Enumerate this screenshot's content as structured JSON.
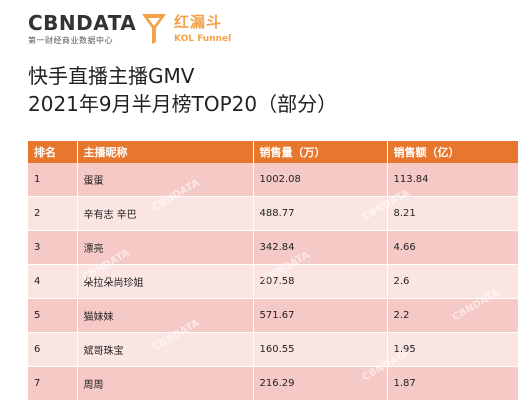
{
  "logo": {
    "cbn_brand": "CBNDATA",
    "cbn_sub": "第一财经商业数据中心",
    "kol_cn": "红漏斗",
    "kol_en": "KOL Funnel"
  },
  "title": {
    "line1": "快手直播主播GMV",
    "line2": "2021年9月半月榜TOP20（部分）"
  },
  "table": {
    "headers": [
      "排名",
      "主播昵称",
      "销售量（万）",
      "销售额（亿）"
    ],
    "rows": [
      [
        "1",
        "蛋蛋",
        "1002.08",
        "113.84"
      ],
      [
        "2",
        "辛有志 辛巴",
        "488.77",
        "8.21"
      ],
      [
        "3",
        "漂亮",
        "342.84",
        "4.66"
      ],
      [
        "4",
        "朵拉朵尚珍姐",
        "207.58",
        "2.6"
      ],
      [
        "5",
        "猫妹妹",
        "571.67",
        "2.2"
      ],
      [
        "6",
        "斌哥珠宝",
        "160.55",
        "1.95"
      ],
      [
        "7",
        "周周",
        "216.29",
        "1.87"
      ]
    ]
  },
  "watermark": "CBNDATA",
  "colors": {
    "header": "#e8772e",
    "row_odd": "#f5c9c6",
    "row_even": "#fbe5e3",
    "kol_orange": "#f2a34a"
  }
}
